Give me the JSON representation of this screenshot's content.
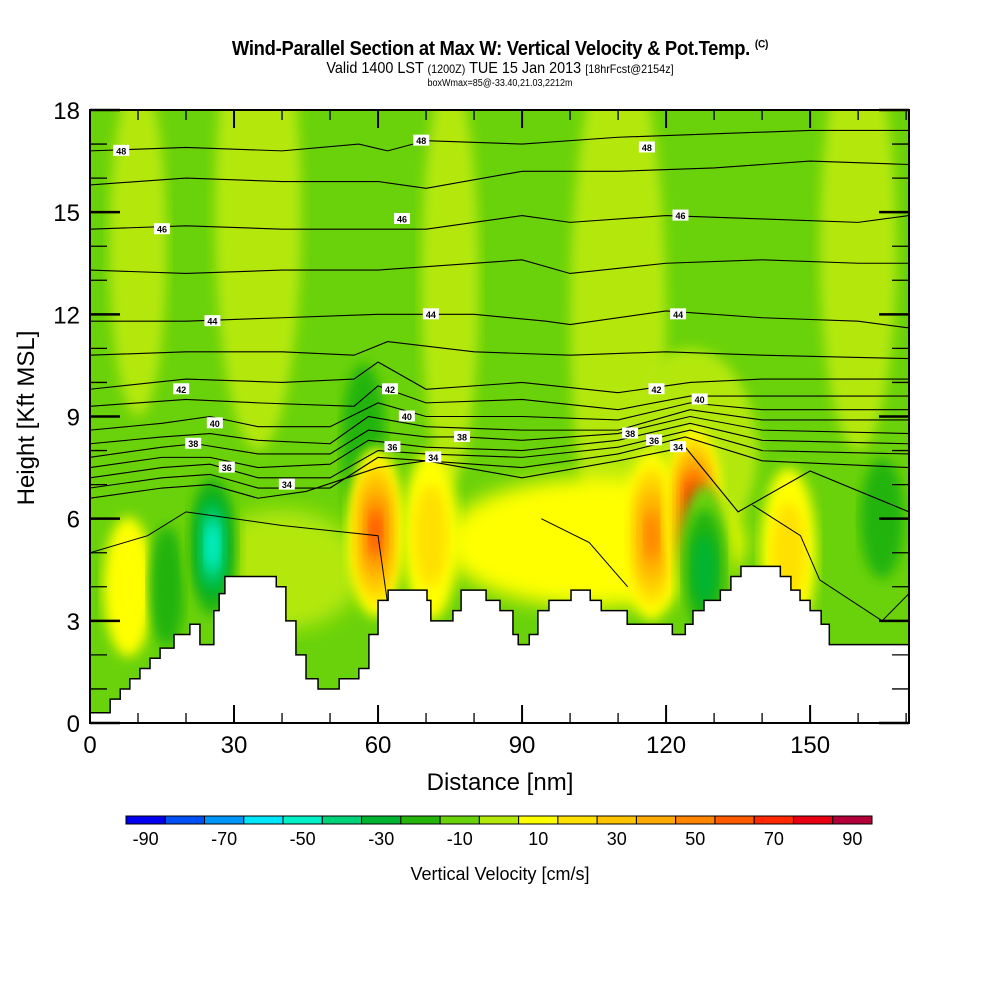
{
  "title": {
    "main": "Wind-Parallel Section at Max W: Vertical Velocity & Pot.Temp.",
    "copyright": "(C)",
    "valid_prefix": "Valid 1400 LST",
    "valid_utc": "(1200Z)",
    "valid_date": "TUE 15 Jan 2013",
    "forecast": "[18hrFcst@2154z]",
    "box_info": "boxWmax=85@-33.40,21.03,2212m"
  },
  "chart_data": {
    "type": "heatmap",
    "title": "Wind-Parallel Section at Max W: Vertical Velocity & Pot.Temp.",
    "xlabel": "Distance [nm]",
    "ylabel": "Height [Kft MSL]",
    "xlim": [
      0,
      170.6
    ],
    "ylim": [
      0,
      18
    ],
    "x_ticks": [
      0,
      30,
      60,
      90,
      120,
      150
    ],
    "x_tick_labels": [
      "0",
      "30",
      "60",
      "90",
      "120",
      "150"
    ],
    "y_ticks": [
      0,
      3,
      6,
      9,
      12,
      15,
      18
    ],
    "y_tick_labels": [
      "0",
      "3",
      "6",
      "9",
      "12",
      "15",
      "18"
    ],
    "grid": false,
    "colorbar": {
      "label": "Vertical Velocity [cm/s]",
      "placement": "bottom",
      "levels": [
        -90,
        -80,
        -70,
        -60,
        -50,
        -40,
        -30,
        -20,
        -10,
        0,
        10,
        20,
        30,
        40,
        50,
        60,
        70,
        80,
        90
      ],
      "tick_labels": [
        "-90",
        "-70",
        "-50",
        "-30",
        "-10",
        "10",
        "30",
        "50",
        "70",
        "90"
      ],
      "tick_values": [
        -90,
        -70,
        -50,
        -30,
        -10,
        10,
        30,
        50,
        70,
        90
      ],
      "colors": [
        "#0000f0",
        "#0050f8",
        "#0096f8",
        "#00e6fa",
        "#00f0c8",
        "#00d27a",
        "#00b432",
        "#24b40a",
        "#6ad20a",
        "#b4e80a",
        "#ffff00",
        "#ffe000",
        "#ffc400",
        "#ffaa00",
        "#ff8400",
        "#ff5a00",
        "#ff2800",
        "#e80012",
        "#b4003a"
      ]
    },
    "background_w_level": 0,
    "terrain_kft": {
      "x": [
        0,
        4.2,
        6.3,
        8.3,
        10.4,
        12.5,
        14.6,
        17.5,
        20.8,
        22.9,
        25.8,
        26.9,
        28.1,
        36.5,
        38.8,
        40.8,
        42.9,
        45.0,
        47.5,
        51.9,
        54.0,
        56.0,
        58.1,
        60.0,
        62.1,
        64.4,
        70.2,
        71.0,
        75.6,
        77.3,
        80.6,
        82.5,
        85.4,
        88.1,
        89.2,
        91.5,
        93.3,
        95.6,
        100.2,
        104.2,
        106.5,
        111.9,
        117.5,
        120.4,
        121.3,
        124.0,
        125.6,
        127.9,
        131.3,
        133.5,
        135.6,
        139.6,
        143.8,
        146.0,
        147.9,
        150.0,
        152.3,
        154.0,
        170.6
      ],
      "h": [
        0.3,
        0.7,
        1.0,
        1.3,
        1.6,
        1.9,
        2.2,
        2.6,
        2.9,
        2.3,
        3.3,
        3.8,
        4.3,
        4.3,
        4.0,
        3.0,
        2.0,
        1.3,
        1.0,
        1.3,
        1.3,
        1.6,
        2.6,
        3.6,
        3.9,
        3.9,
        3.6,
        3.0,
        3.3,
        3.9,
        3.9,
        3.6,
        3.3,
        2.6,
        2.3,
        2.6,
        3.3,
        3.6,
        3.9,
        3.6,
        3.3,
        2.9,
        2.9,
        2.9,
        2.6,
        2.9,
        3.3,
        3.6,
        3.9,
        4.3,
        4.6,
        4.6,
        4.3,
        3.9,
        3.6,
        3.3,
        2.9,
        2.3,
        2.3
      ]
    },
    "w_features": [
      {
        "x": 25.5,
        "h": 5.2,
        "w_cms": -50
      },
      {
        "x": 59.5,
        "h": 5.6,
        "w_cms": 65
      },
      {
        "x": 71.0,
        "h": 5.5,
        "w_cms": 20
      },
      {
        "x": 117.0,
        "h": 5.5,
        "w_cms": 55
      },
      {
        "x": 125.8,
        "h": 6.2,
        "w_cms": 85
      },
      {
        "x": 145.5,
        "h": 5.0,
        "w_cms": 20
      },
      {
        "x": 128.0,
        "h": 4.5,
        "w_cms": -30
      }
    ],
    "theta_contours": {
      "label": "Pot.Temp.",
      "levels": [
        30,
        32,
        34,
        36,
        38,
        40,
        42,
        44,
        46,
        48
      ],
      "labels_shown": [
        {
          "text": "48",
          "x": 6.5,
          "h": 16.8
        },
        {
          "text": "48",
          "x": 69.0,
          "h": 17.1
        },
        {
          "text": "48",
          "x": 116.0,
          "h": 16.9
        },
        {
          "text": "46",
          "x": 15.0,
          "h": 14.5
        },
        {
          "text": "46",
          "x": 65.0,
          "h": 14.8
        },
        {
          "text": "46",
          "x": 123.0,
          "h": 14.9
        },
        {
          "text": "44",
          "x": 25.5,
          "h": 11.8
        },
        {
          "text": "44",
          "x": 71.0,
          "h": 12.0
        },
        {
          "text": "44",
          "x": 122.5,
          "h": 12.0
        },
        {
          "text": "42",
          "x": 19.0,
          "h": 9.8
        },
        {
          "text": "42",
          "x": 62.5,
          "h": 9.8
        },
        {
          "text": "42",
          "x": 118.0,
          "h": 9.8
        },
        {
          "text": "40",
          "x": 26.0,
          "h": 8.8
        },
        {
          "text": "40",
          "x": 66.0,
          "h": 9.0
        },
        {
          "text": "40",
          "x": 127.0,
          "h": 9.5
        },
        {
          "text": "38",
          "x": 21.5,
          "h": 8.2
        },
        {
          "text": "38",
          "x": 77.5,
          "h": 8.4
        },
        {
          "text": "38",
          "x": 112.5,
          "h": 8.5
        },
        {
          "text": "36",
          "x": 28.5,
          "h": 7.5
        },
        {
          "text": "36",
          "x": 63.0,
          "h": 8.1
        },
        {
          "text": "36",
          "x": 117.5,
          "h": 8.3
        },
        {
          "text": "34",
          "x": 41.0,
          "h": 7.0
        },
        {
          "text": "34",
          "x": 71.5,
          "h": 7.8
        },
        {
          "text": "34",
          "x": 122.5,
          "h": 8.1
        }
      ],
      "lines_kft": [
        {
          "level": 48,
          "x": [
            0,
            20,
            40,
            56,
            62,
            70,
            90,
            110,
            130,
            150,
            170.6
          ],
          "h": [
            16.8,
            16.9,
            16.8,
            17.0,
            16.8,
            17.1,
            17.0,
            17.2,
            17.3,
            17.4,
            17.4
          ]
        },
        {
          "level": 47,
          "x": [
            0,
            20,
            40,
            60,
            70,
            90,
            110,
            130,
            150,
            170.6
          ],
          "h": [
            15.8,
            16.0,
            15.9,
            15.9,
            15.7,
            16.2,
            16.2,
            16.3,
            16.5,
            16.4
          ]
        },
        {
          "level": 46,
          "x": [
            0,
            20,
            40,
            55,
            70,
            90,
            100,
            120,
            140,
            160,
            170.6
          ],
          "h": [
            14.5,
            14.6,
            14.5,
            14.5,
            14.5,
            14.9,
            14.7,
            14.9,
            14.8,
            14.7,
            14.9
          ]
        },
        {
          "level": 45,
          "x": [
            0,
            20,
            40,
            60,
            70,
            90,
            100,
            120,
            140,
            160,
            170.6
          ],
          "h": [
            13.3,
            13.2,
            13.3,
            13.3,
            13.4,
            13.6,
            13.2,
            13.5,
            13.6,
            13.5,
            13.5
          ]
        },
        {
          "level": 44,
          "x": [
            0,
            20,
            40,
            60,
            80,
            95,
            100,
            120,
            140,
            160,
            170.6
          ],
          "h": [
            11.8,
            11.8,
            11.9,
            12.0,
            12.0,
            11.8,
            11.7,
            12.1,
            11.9,
            11.8,
            11.6
          ]
        },
        {
          "level": 43,
          "x": [
            0,
            20,
            40,
            55,
            62,
            80,
            100,
            120,
            140,
            170.6
          ],
          "h": [
            10.8,
            10.9,
            10.9,
            10.8,
            11.2,
            10.9,
            10.8,
            10.9,
            10.8,
            10.7
          ]
        },
        {
          "level": 42,
          "x": [
            0,
            20,
            40,
            55,
            60,
            70,
            90,
            110,
            125,
            140,
            170.6
          ],
          "h": [
            9.8,
            10.1,
            10.0,
            10.1,
            10.6,
            9.8,
            10.0,
            9.7,
            10.0,
            10.1,
            10.1
          ]
        },
        {
          "level": 41,
          "x": [
            0,
            20,
            35,
            55,
            60,
            70,
            90,
            110,
            125,
            140,
            170.6
          ],
          "h": [
            9.3,
            9.5,
            9.4,
            9.3,
            9.9,
            9.4,
            9.5,
            9.2,
            9.6,
            9.6,
            9.6
          ]
        },
        {
          "level": 40,
          "x": [
            0,
            15,
            25,
            35,
            50,
            60,
            70,
            90,
            110,
            125,
            140,
            170.6
          ],
          "h": [
            8.6,
            8.8,
            9.0,
            8.7,
            8.7,
            9.4,
            9.0,
            9.0,
            8.9,
            9.4,
            9.2,
            9.2
          ]
        },
        {
          "level": 39,
          "x": [
            0,
            15,
            25,
            35,
            50,
            58,
            70,
            90,
            110,
            125,
            140,
            170.6
          ],
          "h": [
            8.2,
            8.4,
            8.5,
            8.3,
            8.2,
            9.0,
            8.7,
            8.6,
            8.6,
            9.2,
            8.9,
            8.9
          ]
        },
        {
          "level": 38,
          "x": [
            0,
            15,
            22,
            35,
            50,
            58,
            70,
            78,
            90,
            110,
            125,
            140,
            170.6
          ],
          "h": [
            7.8,
            8.1,
            8.2,
            7.9,
            7.9,
            8.6,
            8.4,
            8.4,
            8.3,
            8.5,
            9.0,
            8.6,
            8.5
          ]
        },
        {
          "level": 37,
          "x": [
            0,
            15,
            25,
            35,
            50,
            58,
            70,
            90,
            110,
            125,
            140,
            170.6
          ],
          "h": [
            7.5,
            7.8,
            7.8,
            7.5,
            7.6,
            8.3,
            8.1,
            8.0,
            8.3,
            8.8,
            8.3,
            8.2
          ]
        },
        {
          "level": 36,
          "x": [
            0,
            15,
            25,
            35,
            50,
            60,
            70,
            90,
            110,
            125,
            140,
            170.6
          ],
          "h": [
            7.2,
            7.5,
            7.6,
            7.2,
            7.2,
            8.0,
            7.9,
            7.8,
            8.1,
            8.6,
            8.0,
            7.9
          ]
        },
        {
          "level": 35,
          "x": [
            0,
            15,
            25,
            35,
            50,
            60,
            70,
            90,
            110,
            124,
            140,
            170.6
          ],
          "h": [
            6.9,
            7.2,
            7.3,
            6.9,
            6.9,
            7.8,
            7.7,
            7.5,
            7.9,
            8.4,
            7.7,
            7.5
          ]
        },
        {
          "level": 34,
          "x": [
            0,
            15,
            25,
            35,
            45,
            60,
            70,
            90,
            110,
            124,
            135,
            150,
            170.6
          ],
          "h": [
            6.6,
            6.9,
            7.0,
            6.6,
            6.8,
            7.5,
            7.7,
            7.2,
            7.7,
            8.1,
            6.2,
            7.4,
            6.2
          ]
        }
      ]
    }
  }
}
